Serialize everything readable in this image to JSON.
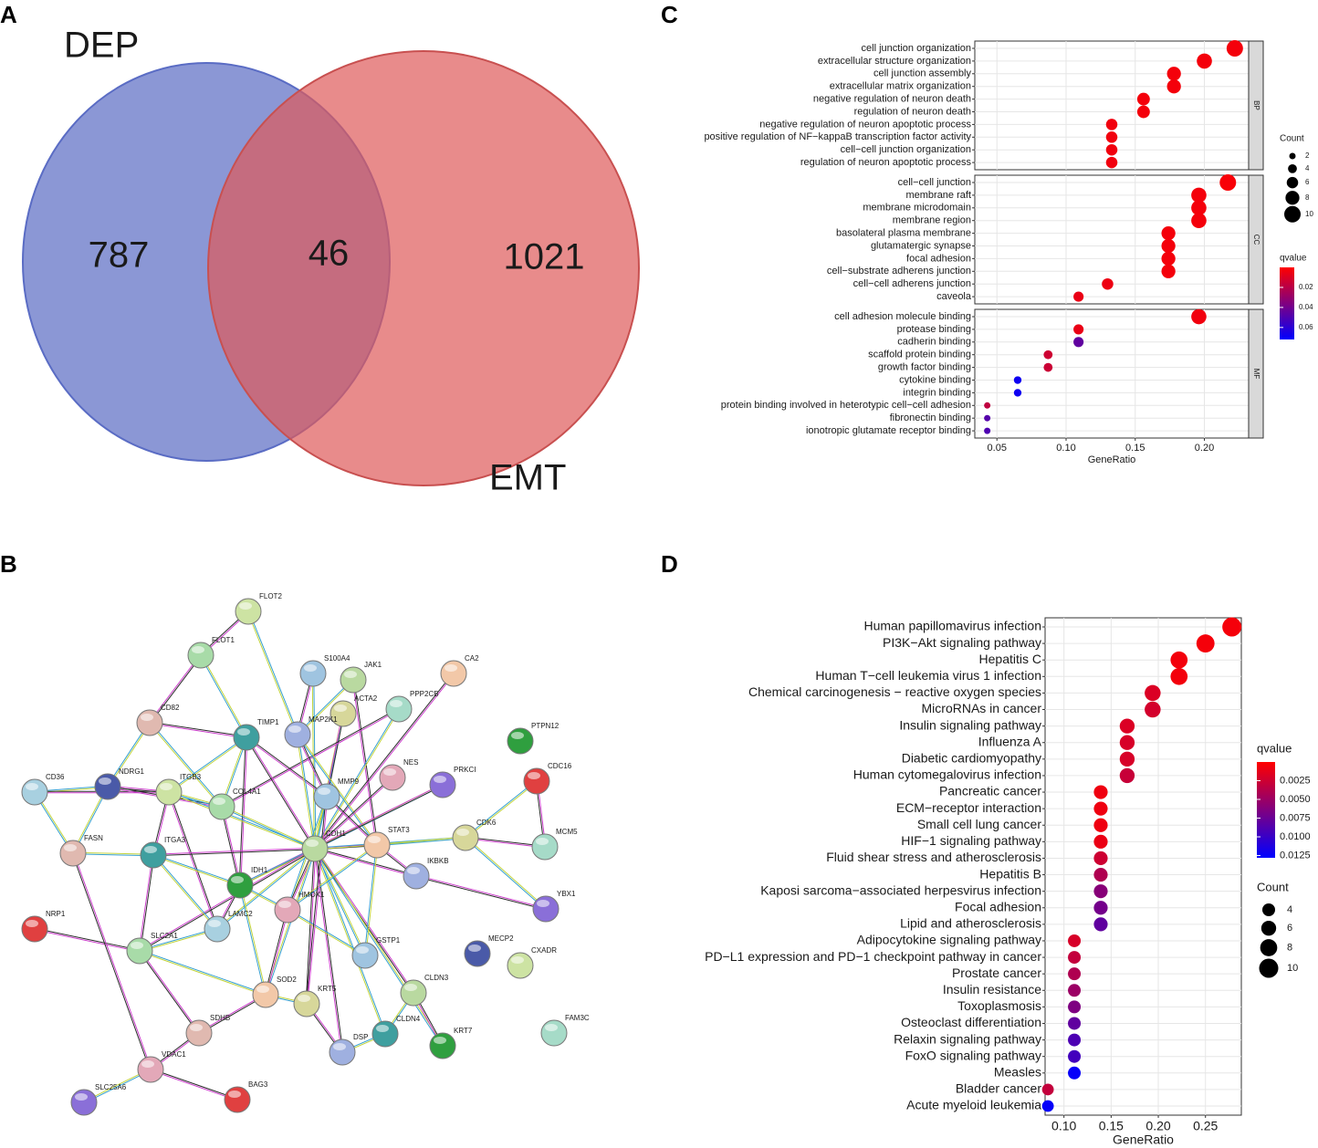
{
  "chart_data": [
    {
      "type": "venn",
      "panel_label": "A",
      "sets": [
        {
          "name": "DEP",
          "color": "#8b97d5",
          "value": 787
        },
        {
          "name": "EMT",
          "color": "#de5a5a",
          "value": 1021
        }
      ],
      "intersection": 46
    },
    {
      "type": "network",
      "panel_label": "B",
      "nodes": [
        "FLOT2",
        "FLOT1",
        "S100A4",
        "JAK1",
        "CA2",
        "ACTA2",
        "PPP2CB",
        "CD82",
        "TIMP1",
        "MAP2K1",
        "PTPN12",
        "NES",
        "PRKCI",
        "CDC16",
        "CD36",
        "NDRG1",
        "ITGB3",
        "COL4A1",
        "MMP9",
        "CDH1",
        "STAT3",
        "CDK6",
        "MCM5",
        "FASN",
        "ITGA3",
        "IKBKB",
        "IDH1",
        "HMOX1",
        "YBX1",
        "NRP1",
        "LAMC2",
        "MECP2",
        "CXADR",
        "SLC2A1",
        "GSTP1",
        "CLDN3",
        "SOD2",
        "KRT5",
        "FAM3C",
        "SDHB",
        "CLDN4",
        "DSP",
        "KRT7",
        "VDAC1",
        "SLC25A6",
        "BAG3"
      ]
    },
    {
      "type": "dot",
      "panel_label": "C",
      "x_label": "GeneRatio",
      "xlim": [
        0.034,
        0.232
      ],
      "xticks": [
        0.05,
        {
          "value": 0.1,
          "label": "0.10"
        },
        0.15,
        {
          "value": 0.2,
          "label": "0.20"
        }
      ],
      "size_title": "Count",
      "size_ticks": [
        2,
        4,
        6,
        8,
        10
      ],
      "color_title": "qvalue",
      "qlim": [
        0,
        0.072
      ],
      "qticks": [
        0.02,
        0.04,
        0.06
      ],
      "low_color": "#ff0000",
      "high_color": "#0000ff",
      "facets": [
        {
          "name": "BP",
          "categories": [
            "cell junction organization",
            "extracellular structure organization",
            "cell junction assembly",
            "extracellular matrix organization",
            "negative regulation of neuron death",
            "regulation of neuron death",
            "negative regulation of neuron apoptotic process",
            "positive regulation of NF−kappaB transcription factor activity",
            "cell−cell junction organization",
            "regulation of neuron apoptotic process"
          ],
          "values": [
            0.222,
            0.2,
            0.178,
            0.178,
            0.156,
            0.156,
            0.133,
            0.133,
            0.133,
            0.133
          ],
          "counts": [
            10,
            9,
            8,
            8,
            7,
            7,
            6,
            6,
            6,
            6
          ],
          "qvalues": [
            0.003,
            0.003,
            0.003,
            0.003,
            0.003,
            0.003,
            0.004,
            0.004,
            0.004,
            0.004
          ]
        },
        {
          "name": "CC",
          "categories": [
            "cell−cell junction",
            "membrane raft",
            "membrane microdomain",
            "membrane region",
            "basolateral plasma membrane",
            "glutamatergic synapse",
            "focal adhesion",
            "cell−substrate adherens junction",
            "cell−cell adherens junction",
            "caveola"
          ],
          "values": [
            0.217,
            0.196,
            0.196,
            0.196,
            0.174,
            0.174,
            0.174,
            0.174,
            0.13,
            0.109
          ],
          "counts": [
            10,
            9,
            9,
            9,
            8,
            8,
            8,
            8,
            6,
            5
          ],
          "qvalues": [
            0.002,
            0.003,
            0.003,
            0.003,
            0.003,
            0.003,
            0.003,
            0.003,
            0.005,
            0.006
          ]
        },
        {
          "name": "MF",
          "categories": [
            "cell adhesion molecule binding",
            "protease binding",
            "cadherin binding",
            "scaffold protein binding",
            "growth factor binding",
            "cytokine binding",
            "integrin binding",
            "protein binding involved in heterotypic cell−cell adhesion",
            "fibronectin binding",
            "ionotropic glutamate receptor binding"
          ],
          "values": [
            0.196,
            0.109,
            0.109,
            0.087,
            0.087,
            0.065,
            0.065,
            0.043,
            0.043,
            0.043
          ],
          "counts": [
            9,
            5,
            5,
            4,
            4,
            3,
            3,
            2,
            2,
            2
          ],
          "qvalues": [
            0.004,
            0.006,
            0.045,
            0.014,
            0.015,
            0.068,
            0.068,
            0.018,
            0.048,
            0.05
          ]
        }
      ]
    },
    {
      "type": "dot",
      "panel_label": "D",
      "x_label": "GeneRatio",
      "xlim": [
        0.08,
        0.288
      ],
      "xticks": [
        {
          "value": 0.1,
          "label": "0.10"
        },
        0.15,
        {
          "value": 0.2,
          "label": "0.20"
        },
        0.25
      ],
      "size_title": "Count",
      "size_ticks": [
        4,
        6,
        8,
        10
      ],
      "color_title": "qvalue",
      "qlim": [
        0,
        0.0128
      ],
      "qticks": [
        0.0025,
        {
          "value": 0.005,
          "label": "0.0050"
        },
        0.0075,
        {
          "value": 0.01,
          "label": "0.0100"
        },
        0.0125
      ],
      "low_color": "#ff0000",
      "high_color": "#0000ff",
      "categories": [
        "Human papillomavirus infection",
        "PI3K−Akt signaling pathway",
        "Hepatitis C",
        "Human T−cell leukemia virus 1 infection",
        "Chemical carcinogenesis − reactive oxygen species",
        "MicroRNAs in cancer",
        "Insulin signaling pathway",
        "Influenza A",
        "Diabetic cardiomyopathy",
        "Human cytomegalovirus infection",
        "Pancreatic cancer",
        "ECM−receptor interaction",
        "Small cell lung cancer",
        "HIF−1 signaling pathway",
        "Fluid shear stress and atherosclerosis",
        "Hepatitis B",
        "Kaposi sarcoma−associated herpesvirus infection",
        "Focal adhesion",
        "Lipid and atherosclerosis",
        "Adipocytokine signaling pathway",
        "PD−L1 expression and PD−1 checkpoint pathway in cancer",
        "Prostate cancer",
        "Insulin resistance",
        "Toxoplasmosis",
        "Osteoclast differentiation",
        "Relaxin signaling pathway",
        "FoxO signaling pathway",
        "Measles",
        "Bladder cancer",
        "Acute myeloid leukemia"
      ],
      "values": [
        0.278,
        0.25,
        0.222,
        0.222,
        0.194,
        0.194,
        0.167,
        0.167,
        0.167,
        0.167,
        0.139,
        0.139,
        0.139,
        0.139,
        0.139,
        0.139,
        0.139,
        0.139,
        0.139,
        0.111,
        0.111,
        0.111,
        0.111,
        0.111,
        0.111,
        0.111,
        0.111,
        0.111,
        0.083,
        0.083
      ],
      "counts": [
        10,
        9,
        8,
        8,
        7,
        7,
        6,
        6,
        6,
        6,
        5,
        5,
        5,
        5,
        5,
        5,
        5,
        5,
        5,
        4,
        4,
        4,
        4,
        4,
        4,
        4,
        4,
        4,
        3,
        3
      ],
      "qvalues": [
        0.0005,
        0.0005,
        0.0006,
        0.0006,
        0.0018,
        0.0022,
        0.0018,
        0.002,
        0.002,
        0.0028,
        0.0008,
        0.0008,
        0.0008,
        0.001,
        0.0025,
        0.004,
        0.006,
        0.007,
        0.008,
        0.002,
        0.003,
        0.004,
        0.005,
        0.0065,
        0.008,
        0.009,
        0.0095,
        0.0125,
        0.003,
        0.0125
      ]
    }
  ]
}
